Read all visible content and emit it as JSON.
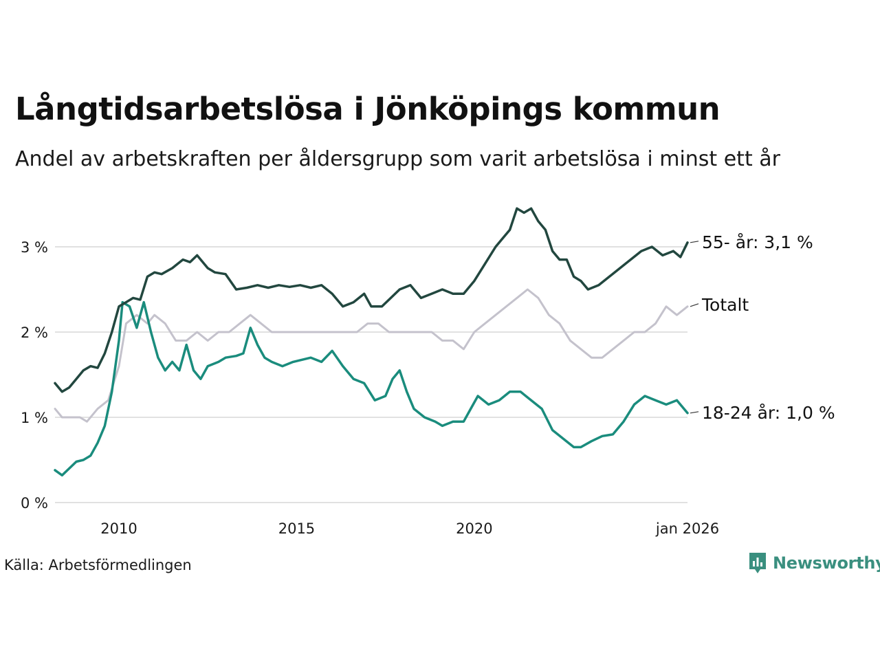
{
  "title": "Långtidsarbetslösa i Jönköpings kommun",
  "subtitle": "Andel av arbetskraften per åldersgrupp som varit arbetslösa i minst ett år",
  "source": "Källa: Arbetsförmedlingen",
  "brand": "Newsworthy",
  "colors": {
    "age55": "#22473f",
    "total": "#c4c2cc",
    "age18_24": "#1a8c7d",
    "grid": "#e1e1e1",
    "brand": "#3a8f7f"
  },
  "chart_data": {
    "type": "line",
    "ylim": [
      0,
      3.5
    ],
    "yticks": [
      0,
      1,
      2,
      3
    ],
    "ytick_labels": [
      "0 %",
      "1 %",
      "2 %",
      "3 %"
    ],
    "xlim": [
      2008.2,
      2026.0
    ],
    "xticks": [
      2010,
      2015,
      2020,
      2026
    ],
    "xtick_labels": [
      "2010",
      "2015",
      "2020",
      "jan 2026"
    ],
    "series": [
      {
        "key": "age55",
        "name": "55- år",
        "end_label": "55- år: 3,1 %",
        "x": [
          2008.2,
          2008.4,
          2008.6,
          2008.8,
          2009.0,
          2009.2,
          2009.4,
          2009.6,
          2009.8,
          2010.0,
          2010.2,
          2010.4,
          2010.6,
          2010.8,
          2011.0,
          2011.2,
          2011.5,
          2011.8,
          2012.0,
          2012.2,
          2012.5,
          2012.7,
          2013.0,
          2013.3,
          2013.6,
          2013.9,
          2014.2,
          2014.5,
          2014.8,
          2015.1,
          2015.4,
          2015.7,
          2016.0,
          2016.3,
          2016.6,
          2016.9,
          2017.1,
          2017.4,
          2017.6,
          2017.9,
          2018.2,
          2018.5,
          2018.8,
          2019.1,
          2019.4,
          2019.7,
          2020.0,
          2020.3,
          2020.6,
          2020.8,
          2021.0,
          2021.2,
          2021.4,
          2021.6,
          2021.8,
          2022.0,
          2022.2,
          2022.4,
          2022.6,
          2022.8,
          2023.0,
          2023.2,
          2023.5,
          2023.8,
          2024.1,
          2024.4,
          2024.7,
          2025.0,
          2025.3,
          2025.6,
          2025.8,
          2026.0
        ],
        "values": [
          1.4,
          1.3,
          1.35,
          1.45,
          1.55,
          1.6,
          1.58,
          1.75,
          2.0,
          2.3,
          2.35,
          2.4,
          2.38,
          2.65,
          2.7,
          2.68,
          2.75,
          2.85,
          2.82,
          2.9,
          2.75,
          2.7,
          2.68,
          2.5,
          2.52,
          2.55,
          2.52,
          2.55,
          2.53,
          2.55,
          2.52,
          2.55,
          2.45,
          2.3,
          2.35,
          2.45,
          2.3,
          2.3,
          2.38,
          2.5,
          2.55,
          2.4,
          2.45,
          2.5,
          2.45,
          2.45,
          2.6,
          2.8,
          3.0,
          3.1,
          3.2,
          3.45,
          3.4,
          3.45,
          3.3,
          3.2,
          2.95,
          2.85,
          2.85,
          2.65,
          2.6,
          2.5,
          2.55,
          2.65,
          2.75,
          2.85,
          2.95,
          3.0,
          2.9,
          2.95,
          2.88,
          3.05
        ]
      },
      {
        "key": "total",
        "name": "Totalt",
        "end_label": "Totalt",
        "x": [
          2008.2,
          2008.4,
          2008.6,
          2008.9,
          2009.1,
          2009.4,
          2009.7,
          2010.0,
          2010.2,
          2010.5,
          2010.8,
          2011.0,
          2011.3,
          2011.6,
          2011.9,
          2012.2,
          2012.5,
          2012.8,
          2013.1,
          2013.4,
          2013.7,
          2014.0,
          2014.3,
          2014.6,
          2014.9,
          2015.2,
          2015.5,
          2015.8,
          2016.1,
          2016.4,
          2016.7,
          2017.0,
          2017.3,
          2017.6,
          2017.9,
          2018.2,
          2018.5,
          2018.8,
          2019.1,
          2019.4,
          2019.7,
          2020.0,
          2020.3,
          2020.6,
          2020.9,
          2021.2,
          2021.5,
          2021.8,
          2022.1,
          2022.4,
          2022.7,
          2023.0,
          2023.3,
          2023.6,
          2023.9,
          2024.2,
          2024.5,
          2024.8,
          2025.1,
          2025.4,
          2025.7,
          2026.0
        ],
        "values": [
          1.1,
          1.0,
          1.0,
          1.0,
          0.95,
          1.1,
          1.2,
          1.6,
          2.1,
          2.2,
          2.1,
          2.2,
          2.1,
          1.9,
          1.9,
          2.0,
          1.9,
          2.0,
          2.0,
          2.1,
          2.2,
          2.1,
          2.0,
          2.0,
          2.0,
          2.0,
          2.0,
          2.0,
          2.0,
          2.0,
          2.0,
          2.1,
          2.1,
          2.0,
          2.0,
          2.0,
          2.0,
          2.0,
          1.9,
          1.9,
          1.8,
          2.0,
          2.1,
          2.2,
          2.3,
          2.4,
          2.5,
          2.4,
          2.2,
          2.1,
          1.9,
          1.8,
          1.7,
          1.7,
          1.8,
          1.9,
          2.0,
          2.0,
          2.1,
          2.3,
          2.2,
          2.3
        ]
      },
      {
        "key": "age18_24",
        "name": "18-24 år",
        "end_label": "18-24 år: 1,0 %",
        "x": [
          2008.2,
          2008.4,
          2008.6,
          2008.8,
          2009.0,
          2009.2,
          2009.4,
          2009.6,
          2009.8,
          2010.0,
          2010.1,
          2010.3,
          2010.5,
          2010.7,
          2010.9,
          2011.1,
          2011.3,
          2011.5,
          2011.7,
          2011.9,
          2012.1,
          2012.3,
          2012.5,
          2012.8,
          2013.0,
          2013.3,
          2013.5,
          2013.7,
          2013.9,
          2014.1,
          2014.3,
          2014.6,
          2014.9,
          2015.2,
          2015.4,
          2015.7,
          2016.0,
          2016.3,
          2016.6,
          2016.9,
          2017.2,
          2017.5,
          2017.7,
          2017.9,
          2018.1,
          2018.3,
          2018.6,
          2018.9,
          2019.1,
          2019.4,
          2019.7,
          2019.9,
          2020.1,
          2020.4,
          2020.7,
          2021.0,
          2021.3,
          2021.6,
          2021.9,
          2022.2,
          2022.5,
          2022.8,
          2023.0,
          2023.3,
          2023.6,
          2023.9,
          2024.2,
          2024.5,
          2024.8,
          2025.1,
          2025.4,
          2025.7,
          2026.0
        ],
        "values": [
          0.38,
          0.32,
          0.4,
          0.48,
          0.5,
          0.55,
          0.7,
          0.9,
          1.3,
          1.9,
          2.35,
          2.3,
          2.05,
          2.35,
          2.0,
          1.7,
          1.55,
          1.65,
          1.55,
          1.85,
          1.55,
          1.45,
          1.6,
          1.65,
          1.7,
          1.72,
          1.75,
          2.05,
          1.85,
          1.7,
          1.65,
          1.6,
          1.65,
          1.68,
          1.7,
          1.65,
          1.78,
          1.6,
          1.45,
          1.4,
          1.2,
          1.25,
          1.45,
          1.55,
          1.3,
          1.1,
          1.0,
          0.95,
          0.9,
          0.95,
          0.95,
          1.1,
          1.25,
          1.15,
          1.2,
          1.3,
          1.3,
          1.2,
          1.1,
          0.85,
          0.75,
          0.65,
          0.65,
          0.72,
          0.78,
          0.8,
          0.95,
          1.15,
          1.25,
          1.2,
          1.15,
          1.2,
          1.05
        ]
      }
    ]
  }
}
